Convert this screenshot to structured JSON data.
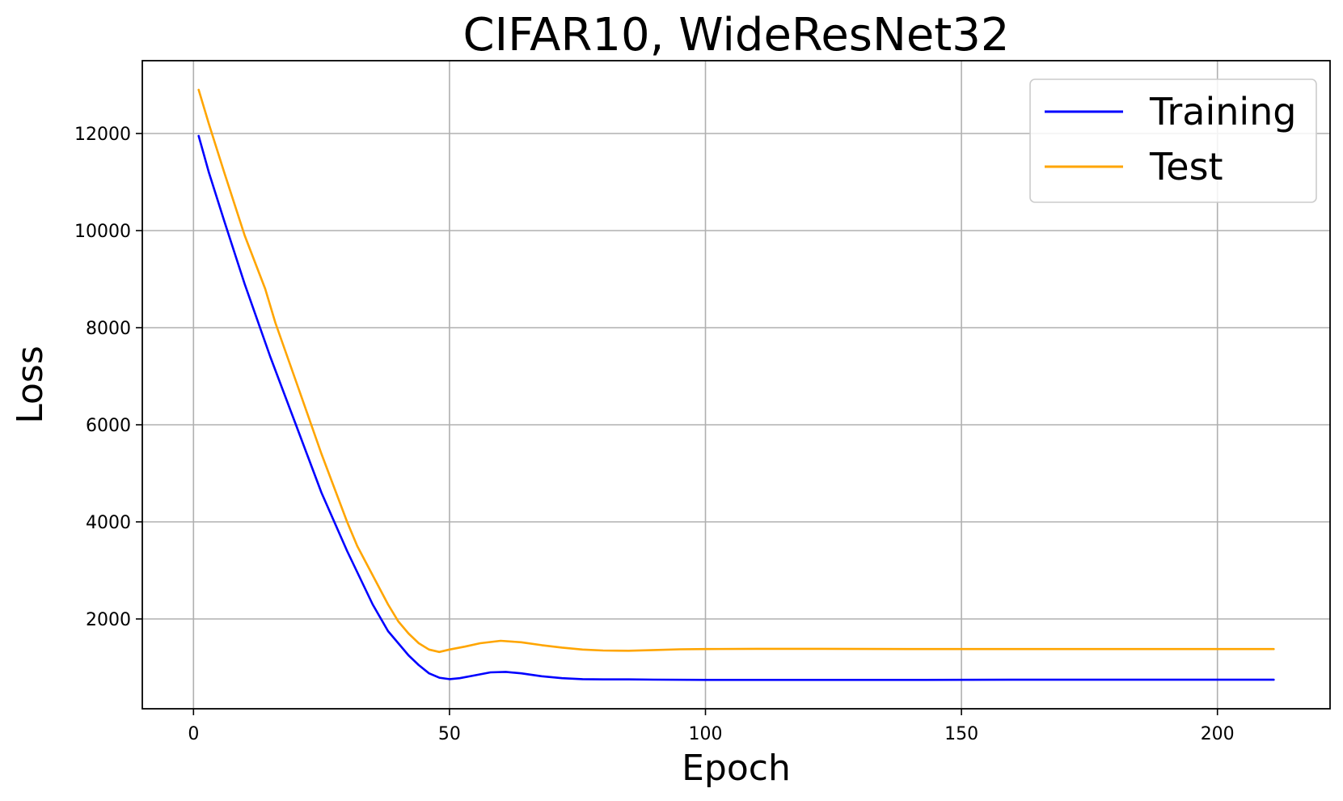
{
  "chart_data": {
    "type": "line",
    "title": "CIFAR10, WideResNet32",
    "xlabel": "Epoch",
    "ylabel": "Loss",
    "xlim": [
      -10,
      222
    ],
    "ylim": [
      150,
      13500
    ],
    "xticks": [
      0,
      50,
      100,
      150,
      200
    ],
    "yticks": [
      2000,
      4000,
      6000,
      8000,
      10000,
      12000
    ],
    "grid": true,
    "legend_position": "top-right",
    "series": [
      {
        "name": "Training",
        "color": "#0000ff",
        "points": [
          [
            1,
            11950
          ],
          [
            3,
            11200
          ],
          [
            6,
            10200
          ],
          [
            10,
            8900
          ],
          [
            15,
            7400
          ],
          [
            20,
            6000
          ],
          [
            25,
            4600
          ],
          [
            30,
            3400
          ],
          [
            35,
            2300
          ],
          [
            38,
            1750
          ],
          [
            40,
            1500
          ],
          [
            42,
            1250
          ],
          [
            44,
            1050
          ],
          [
            46,
            880
          ],
          [
            48,
            790
          ],
          [
            50,
            760
          ],
          [
            52,
            780
          ],
          [
            55,
            840
          ],
          [
            58,
            900
          ],
          [
            61,
            910
          ],
          [
            64,
            880
          ],
          [
            68,
            820
          ],
          [
            72,
            780
          ],
          [
            76,
            760
          ],
          [
            80,
            755
          ],
          [
            85,
            755
          ],
          [
            90,
            750
          ],
          [
            100,
            745
          ],
          [
            120,
            745
          ],
          [
            140,
            745
          ],
          [
            160,
            748
          ],
          [
            180,
            748
          ],
          [
            200,
            748
          ],
          [
            211,
            748
          ]
        ]
      },
      {
        "name": "Test",
        "color": "#ffa500",
        "points": [
          [
            1,
            12900
          ],
          [
            3,
            12200
          ],
          [
            6,
            11200
          ],
          [
            10,
            9900
          ],
          [
            14,
            8800
          ],
          [
            16,
            8100
          ],
          [
            20,
            6900
          ],
          [
            25,
            5400
          ],
          [
            30,
            4000
          ],
          [
            32,
            3500
          ],
          [
            35,
            2900
          ],
          [
            38,
            2300
          ],
          [
            40,
            1950
          ],
          [
            42,
            1700
          ],
          [
            44,
            1500
          ],
          [
            46,
            1370
          ],
          [
            48,
            1320
          ],
          [
            50,
            1370
          ],
          [
            53,
            1430
          ],
          [
            56,
            1500
          ],
          [
            60,
            1550
          ],
          [
            64,
            1520
          ],
          [
            68,
            1460
          ],
          [
            72,
            1410
          ],
          [
            76,
            1370
          ],
          [
            80,
            1350
          ],
          [
            85,
            1345
          ],
          [
            90,
            1360
          ],
          [
            95,
            1375
          ],
          [
            100,
            1380
          ],
          [
            110,
            1385
          ],
          [
            120,
            1385
          ],
          [
            140,
            1380
          ],
          [
            160,
            1380
          ],
          [
            180,
            1380
          ],
          [
            200,
            1380
          ],
          [
            211,
            1380
          ]
        ]
      }
    ]
  }
}
